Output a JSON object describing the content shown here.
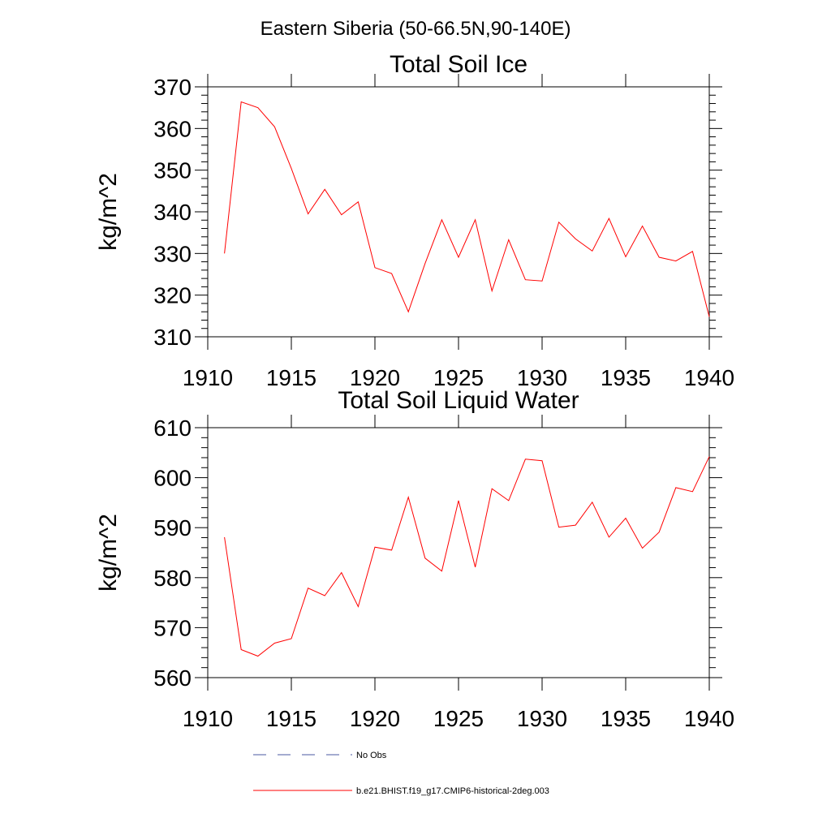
{
  "figure_title": "Eastern Siberia (50-66.5N,90-140E)",
  "chart_data": [
    {
      "type": "line",
      "title": "Total Soil Ice",
      "xlabel": "",
      "ylabel": "kg/m^2",
      "xlim": [
        1910,
        1940
      ],
      "ylim": [
        310,
        370
      ],
      "xticks": [
        1910,
        1915,
        1920,
        1925,
        1930,
        1935,
        1940
      ],
      "yticks": [
        310,
        320,
        330,
        340,
        350,
        360,
        370
      ],
      "series": [
        {
          "color": "#ff0000",
          "x": [
            1911,
            1912,
            1913,
            1914,
            1915,
            1916,
            1917,
            1918,
            1919,
            1920,
            1921,
            1922,
            1923,
            1924,
            1925,
            1926,
            1927,
            1928,
            1929,
            1930,
            1931,
            1932,
            1933,
            1934,
            1935,
            1936,
            1937,
            1938,
            1939,
            1940
          ],
          "y": [
            330,
            366.4,
            365,
            360.4,
            350.4,
            339.5,
            345.4,
            339.3,
            342.4,
            326.6,
            325.2,
            316,
            327.6,
            338.1,
            329.1,
            338.1,
            321,
            333.3,
            323.7,
            323.4,
            337.5,
            333.5,
            330.6,
            338.4,
            329.2,
            336.6,
            329.1,
            328.2,
            330.5,
            314.8
          ]
        }
      ]
    },
    {
      "type": "line",
      "title": "Total Soil Liquid Water",
      "xlabel": "",
      "ylabel": "kg/m^2",
      "xlim": [
        1910,
        1940
      ],
      "ylim": [
        560,
        610
      ],
      "xticks": [
        1910,
        1915,
        1920,
        1925,
        1930,
        1935,
        1940
      ],
      "yticks": [
        560,
        570,
        580,
        590,
        600,
        610
      ],
      "series": [
        {
          "color": "#ff0000",
          "x": [
            1911,
            1912,
            1913,
            1914,
            1915,
            1916,
            1917,
            1918,
            1919,
            1920,
            1921,
            1922,
            1923,
            1924,
            1925,
            1926,
            1927,
            1928,
            1929,
            1930,
            1931,
            1932,
            1933,
            1934,
            1935,
            1936,
            1937,
            1938,
            1939,
            1940
          ],
          "y": [
            588.1,
            565.6,
            564.3,
            566.9,
            567.8,
            577.9,
            576.4,
            581,
            574.2,
            586.1,
            585.5,
            596.1,
            583.9,
            581.3,
            595.4,
            582.1,
            597.8,
            595.4,
            603.7,
            603.4,
            590.1,
            590.5,
            595.1,
            588.1,
            591.9,
            585.9,
            589.1,
            598,
            597.2,
            604.2
          ]
        }
      ]
    }
  ],
  "legend": {
    "placement": "bottom",
    "entries": [
      {
        "label": "No Obs",
        "color": "#4a5aa0",
        "style": "dashed"
      },
      {
        "label": "b.e21.BHIST.f19_g17.CMIP6-historical-2deg.003",
        "color": "#ff0000",
        "style": "solid"
      }
    ]
  }
}
